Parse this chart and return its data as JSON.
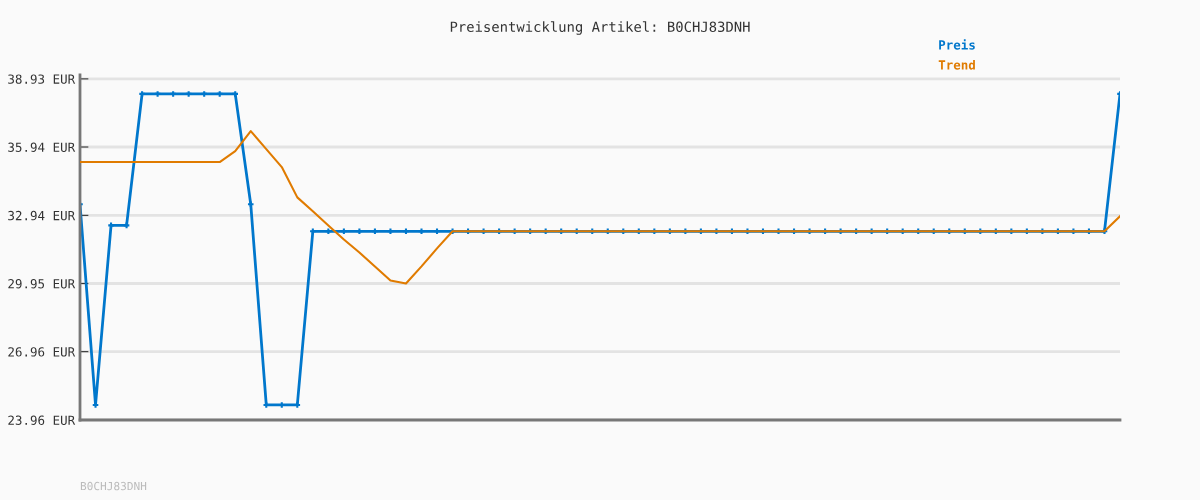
{
  "chart_data": {
    "type": "line",
    "title": "Preisentwicklung Artikel: B0CHJ83DNH",
    "categories": [
      null,
      null,
      null,
      null,
      null,
      null,
      null,
      null,
      null,
      null,
      null,
      null,
      null,
      null,
      null,
      null,
      null,
      null,
      null,
      null,
      null,
      null,
      null,
      null,
      null,
      null,
      null,
      null,
      null,
      null,
      null,
      null,
      null,
      null,
      null,
      null,
      null,
      null,
      null,
      null,
      null,
      null,
      null,
      null,
      null,
      null,
      null,
      null,
      null,
      null,
      null,
      null,
      null,
      null,
      null,
      null,
      null,
      null,
      null,
      null,
      null,
      null,
      null,
      null,
      null,
      null,
      null,
      null
    ],
    "series": [
      {
        "name": "Preis",
        "color": "#0077cc",
        "marker": "cross",
        "values": [
          33.43,
          24.62,
          32.5,
          32.5,
          38.27,
          38.27,
          38.27,
          38.27,
          38.27,
          38.27,
          38.27,
          33.43,
          24.62,
          24.62,
          24.62,
          32.24,
          32.24,
          32.24,
          32.24,
          32.24,
          32.24,
          32.24,
          32.24,
          32.24,
          32.24,
          32.24,
          32.24,
          32.24,
          32.24,
          32.24,
          32.24,
          32.24,
          32.24,
          32.24,
          32.24,
          32.24,
          32.24,
          32.24,
          32.24,
          32.24,
          32.24,
          32.24,
          32.24,
          32.24,
          32.24,
          32.24,
          32.24,
          32.24,
          32.24,
          32.24,
          32.24,
          32.24,
          32.24,
          32.24,
          32.24,
          32.24,
          32.24,
          32.24,
          32.24,
          32.24,
          32.24,
          32.24,
          32.24,
          32.24,
          32.24,
          32.24,
          32.24,
          38.27
        ]
      },
      {
        "name": "Trend",
        "color": "#e07b00",
        "values": [
          35.28,
          35.28,
          35.28,
          35.28,
          35.28,
          35.28,
          35.28,
          35.28,
          35.28,
          35.28,
          35.76,
          36.64,
          35.85,
          35.06,
          33.73,
          33.12,
          32.5,
          31.88,
          31.31,
          30.7,
          30.08,
          29.95,
          30.7,
          31.49,
          32.24,
          32.24,
          32.24,
          32.24,
          32.24,
          32.24,
          32.24,
          32.24,
          32.24,
          32.24,
          32.24,
          32.24,
          32.24,
          32.24,
          32.24,
          32.24,
          32.24,
          32.24,
          32.24,
          32.24,
          32.24,
          32.24,
          32.24,
          32.24,
          32.24,
          32.24,
          32.24,
          32.24,
          32.24,
          32.24,
          32.24,
          32.24,
          32.24,
          32.24,
          32.24,
          32.24,
          32.24,
          32.24,
          32.24,
          32.24,
          32.24,
          32.24,
          32.24,
          32.9
        ]
      }
    ],
    "ylim": [
      23.96,
      39.1
    ],
    "yticks": [
      {
        "value": 23.96,
        "label": "23.96 EUR"
      },
      {
        "value": 26.96,
        "label": "26.96 EUR"
      },
      {
        "value": 29.95,
        "label": "29.95 EUR"
      },
      {
        "value": 32.94,
        "label": "32.94 EUR"
      },
      {
        "value": 35.94,
        "label": "35.94 EUR"
      },
      {
        "value": 38.93,
        "label": "38.93 EUR"
      }
    ],
    "grid": "y",
    "legend": "top right",
    "tick_labels": "y",
    "annotations": [
      "B0CHJ83DNH"
    ]
  }
}
